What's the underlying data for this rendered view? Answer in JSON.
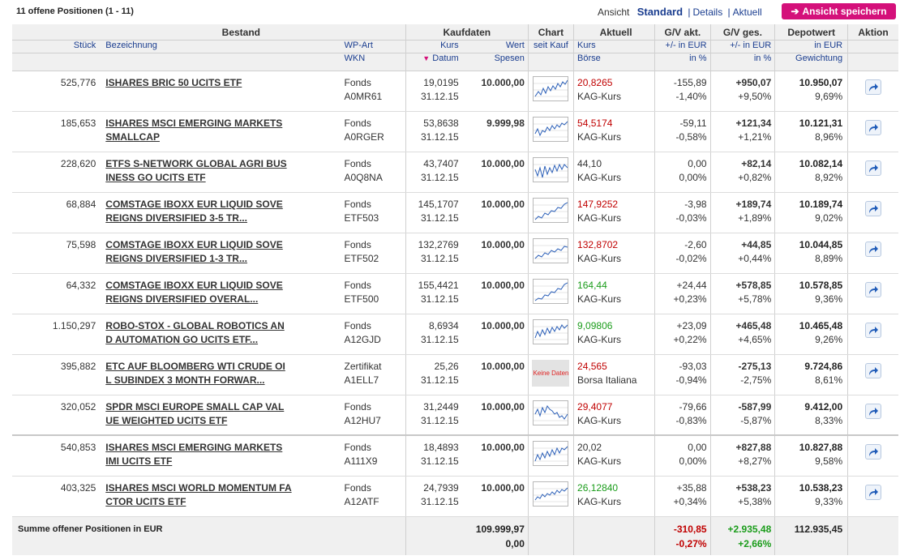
{
  "header": {
    "positions_count": "11 offene Positionen (1 - 11)",
    "view_label": "Ansicht",
    "view_standard": "Standard",
    "view_details": "Details",
    "view_aktuell": "Aktuell",
    "save_view_label": "Ansicht speichern"
  },
  "columns": {
    "bestand": "Bestand",
    "kaufdaten": "Kaufdaten",
    "chart": "Chart",
    "aktuell": "Aktuell",
    "gv_akt": "G/V akt.",
    "gv_ges": "G/V ges.",
    "depotwert": "Depotwert",
    "aktion": "Aktion",
    "stueck": "Stück",
    "bezeichnung": "Bezeichnung",
    "wp_art": "WP-Art",
    "wkn": "WKN",
    "kurs": "Kurs",
    "datum": "Datum",
    "wert": "Wert",
    "spesen": "Spesen",
    "seit_kauf": "seit Kauf",
    "akt_kurs": "Kurs",
    "boerse": "Börse",
    "gv_akt_eur": "+/- in EUR",
    "gv_akt_pct": "in %",
    "gv_ges_eur": "+/- in EUR",
    "gv_ges_pct": "in %",
    "depot_eur": "in EUR",
    "gewichtung": "Gewichtung"
  },
  "rows": [
    {
      "stueck": "525,776",
      "name1": "ISHARES BRIC 50 UCITS ETF",
      "name2": "",
      "art": "Fonds",
      "wkn": "A0MR61",
      "kurs": "19,0195",
      "datum": "31.12.15",
      "wert": "10.000,00",
      "spesen": "",
      "akt_kurs": "20,8265",
      "akt_dir": "neg",
      "boerse": "KAG-Kurs",
      "gva_eur": "-155,89",
      "gva_pct": "-1,40%",
      "gva_dir": "neg",
      "gvg_eur": "+950,07",
      "gvg_pct": "+9,50%",
      "gvg_dir": "pos",
      "depot": "10.950,07",
      "gewicht": "9,69%",
      "chart": "line"
    },
    {
      "stueck": "185,653",
      "name1": "ISHARES MSCI EMERGING MARKETS",
      "name2": "SMALLCAP",
      "art": "Fonds",
      "wkn": "A0RGER",
      "kurs": "53,8638",
      "datum": "31.12.15",
      "wert": "9.999,98",
      "spesen": "",
      "akt_kurs": "54,5174",
      "akt_dir": "neg",
      "boerse": "KAG-Kurs",
      "gva_eur": "-59,11",
      "gva_pct": "-0,58%",
      "gva_dir": "neg",
      "gvg_eur": "+121,34",
      "gvg_pct": "+1,21%",
      "gvg_dir": "pos",
      "depot": "10.121,31",
      "gewicht": "8,96%",
      "chart": "line"
    },
    {
      "stueck": "228,620",
      "name1": "ETFS S-NETWORK GLOBAL AGRI BUS",
      "name2": "INESS GO UCITS ETF",
      "art": "Fonds",
      "wkn": "A0Q8NA",
      "kurs": "43,7407",
      "datum": "31.12.15",
      "wert": "10.000,00",
      "spesen": "",
      "akt_kurs": "44,10",
      "akt_dir": "none",
      "boerse": "KAG-Kurs",
      "gva_eur": "0,00",
      "gva_pct": "0,00%",
      "gva_dir": "none",
      "gvg_eur": "+82,14",
      "gvg_pct": "+0,82%",
      "gvg_dir": "pos",
      "depot": "10.082,14",
      "gewicht": "8,92%",
      "chart": "line"
    },
    {
      "stueck": "68,884",
      "name1": "COMSTAGE IBOXX EUR LIQUID SOVE",
      "name2": "REIGNS DIVERSIFIED 3-5 TR...",
      "art": "Fonds",
      "wkn": "ETF503",
      "kurs": "145,1707",
      "datum": "31.12.15",
      "wert": "10.000,00",
      "spesen": "",
      "akt_kurs": "147,9252",
      "akt_dir": "neg",
      "boerse": "KAG-Kurs",
      "gva_eur": "-3,98",
      "gva_pct": "-0,03%",
      "gva_dir": "neg",
      "gvg_eur": "+189,74",
      "gvg_pct": "+1,89%",
      "gvg_dir": "pos",
      "depot": "10.189,74",
      "gewicht": "9,02%",
      "chart": "line"
    },
    {
      "stueck": "75,598",
      "name1": "COMSTAGE IBOXX EUR LIQUID SOVE",
      "name2": "REIGNS DIVERSIFIED 1-3 TR...",
      "art": "Fonds",
      "wkn": "ETF502",
      "kurs": "132,2769",
      "datum": "31.12.15",
      "wert": "10.000,00",
      "spesen": "",
      "akt_kurs": "132,8702",
      "akt_dir": "neg",
      "boerse": "KAG-Kurs",
      "gva_eur": "-2,60",
      "gva_pct": "-0,02%",
      "gva_dir": "neg",
      "gvg_eur": "+44,85",
      "gvg_pct": "+0,44%",
      "gvg_dir": "pos",
      "depot": "10.044,85",
      "gewicht": "8,89%",
      "chart": "line"
    },
    {
      "stueck": "64,332",
      "name1": "COMSTAGE IBOXX EUR LIQUID SOVE",
      "name2": "REIGNS DIVERSIFIED OVERAL...",
      "art": "Fonds",
      "wkn": "ETF500",
      "kurs": "155,4421",
      "datum": "31.12.15",
      "wert": "10.000,00",
      "spesen": "",
      "akt_kurs": "164,44",
      "akt_dir": "pos",
      "boerse": "KAG-Kurs",
      "gva_eur": "+24,44",
      "gva_pct": "+0,23%",
      "gva_dir": "pos",
      "gvg_eur": "+578,85",
      "gvg_pct": "+5,78%",
      "gvg_dir": "pos",
      "depot": "10.578,85",
      "gewicht": "9,36%",
      "chart": "line"
    },
    {
      "stueck": "1.150,297",
      "name1": "ROBO-STOX - GLOBAL ROBOTICS AN",
      "name2": "D AUTOMATION GO UCITS ETF...",
      "art": "Fonds",
      "wkn": "A12GJD",
      "kurs": "8,6934",
      "datum": "31.12.15",
      "wert": "10.000,00",
      "spesen": "",
      "akt_kurs": "9,09806",
      "akt_dir": "pos",
      "boerse": "KAG-Kurs",
      "gva_eur": "+23,09",
      "gva_pct": "+0,22%",
      "gva_dir": "pos",
      "gvg_eur": "+465,48",
      "gvg_pct": "+4,65%",
      "gvg_dir": "pos",
      "depot": "10.465,48",
      "gewicht": "9,26%",
      "chart": "line"
    },
    {
      "stueck": "395,882",
      "name1": "ETC AUF BLOOMBERG WTI CRUDE OI",
      "name2": "L SUBINDEX 3 MONTH FORWAR...",
      "art": "Zertifikat",
      "wkn": "A1ELL7",
      "kurs": "25,26",
      "datum": "31.12.15",
      "wert": "10.000,00",
      "spesen": "",
      "akt_kurs": "24,565",
      "akt_dir": "neg",
      "boerse": "Borsa Italiana",
      "gva_eur": "-93,03",
      "gva_pct": "-0,94%",
      "gva_dir": "neg",
      "gvg_eur": "-275,13",
      "gvg_pct": "-2,75%",
      "gvg_dir": "neg",
      "depot": "9.724,86",
      "gewicht": "8,61%",
      "chart": "none",
      "chart_text": "Keine Daten"
    },
    {
      "stueck": "320,052",
      "name1": "SPDR MSCI EUROPE SMALL CAP VAL",
      "name2": "UE WEIGHTED UCITS ETF",
      "art": "Fonds",
      "wkn": "A12HU7",
      "kurs": "31,2449",
      "datum": "31.12.15",
      "wert": "10.000,00",
      "spesen": "",
      "akt_kurs": "29,4077",
      "akt_dir": "neg",
      "boerse": "KAG-Kurs",
      "gva_eur": "-79,66",
      "gva_pct": "-0,83%",
      "gva_dir": "neg",
      "gvg_eur": "-587,99",
      "gvg_pct": "-5,87%",
      "gvg_dir": "neg",
      "depot": "9.412,00",
      "gewicht": "8,33%",
      "chart": "line"
    },
    {
      "stueck": "540,853",
      "name1": "ISHARES MSCI EMERGING MARKETS",
      "name2": "IMI UCITS ETF",
      "art": "Fonds",
      "wkn": "A111X9",
      "kurs": "18,4893",
      "datum": "31.12.15",
      "wert": "10.000,00",
      "spesen": "",
      "akt_kurs": "20,02",
      "akt_dir": "none",
      "boerse": "KAG-Kurs",
      "gva_eur": "0,00",
      "gva_pct": "0,00%",
      "gva_dir": "none",
      "gvg_eur": "+827,88",
      "gvg_pct": "+8,27%",
      "gvg_dir": "pos",
      "depot": "10.827,88",
      "gewicht": "9,58%",
      "chart": "line"
    },
    {
      "stueck": "403,325",
      "name1": "ISHARES MSCI WORLD MOMENTUM FA",
      "name2": "CTOR UCITS ETF",
      "art": "Fonds",
      "wkn": "A12ATF",
      "kurs": "24,7939",
      "datum": "31.12.15",
      "wert": "10.000,00",
      "spesen": "",
      "akt_kurs": "26,12840",
      "akt_dir": "pos",
      "boerse": "KAG-Kurs",
      "gva_eur": "+35,88",
      "gva_pct": "+0,34%",
      "gva_dir": "pos",
      "gvg_eur": "+538,23",
      "gvg_pct": "+5,38%",
      "gvg_dir": "pos",
      "depot": "10.538,23",
      "gewicht": "9,33%",
      "chart": "line"
    }
  ],
  "summary": {
    "label": "Summe offener Positionen in EUR",
    "wert": "109.999,97",
    "spesen": "0,00",
    "gva_eur": "-310,85",
    "gva_pct": "-0,27%",
    "gvg_eur": "+2.935,48",
    "gvg_pct": "+2,66%",
    "depot": "112.935,45"
  },
  "colors": {
    "accent_pink": "#d4107a",
    "link_blue": "#1a3d8f",
    "negative": "#c00000",
    "positive": "#1a9c1a"
  }
}
